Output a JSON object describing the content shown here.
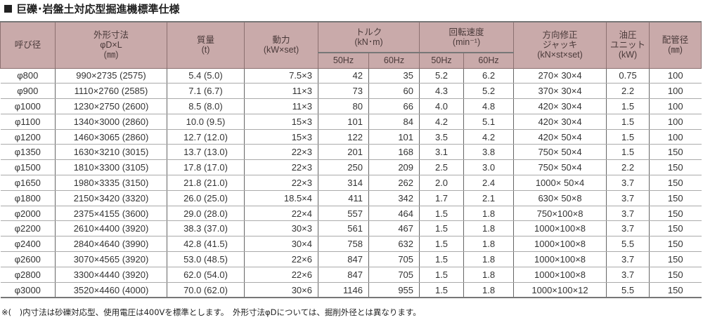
{
  "title": "巨礫･岩盤土対応型掘進機標準仕様",
  "headers": {
    "nominal": "呼び径",
    "outer_dim": [
      "外形寸法",
      "φD×L",
      "(㎜)"
    ],
    "mass": [
      "質量",
      "(t)"
    ],
    "power": [
      "動力",
      "(kW×set)"
    ],
    "torque": [
      "トルク",
      "(kN･m)"
    ],
    "speed": [
      "回転速度",
      "(min⁻¹)"
    ],
    "jack": [
      "方向修正",
      "ジャッキ",
      "(kN×st×set)"
    ],
    "hydraulic": [
      "油圧",
      "ユニット",
      "(kW)"
    ],
    "pipe": [
      "配管径",
      "(㎜)"
    ],
    "hz50": "50Hz",
    "hz60": "60Hz"
  },
  "rows": [
    [
      "φ800",
      "990×2735 (2575)",
      "5.4 (5.0)",
      "7.5×3",
      "42",
      "35",
      "5.2",
      "6.2",
      "270×  30×4",
      "0.75",
      "100"
    ],
    [
      "φ900",
      "1110×2760 (2585)",
      "7.1 (6.7)",
      "11×3",
      "73",
      "60",
      "4.3",
      "5.2",
      "370×  30×4",
      "2.2",
      "100"
    ],
    [
      "φ1000",
      "1230×2750 (2600)",
      "8.5 (8.0)",
      "11×3",
      "80",
      "66",
      "4.0",
      "4.8",
      "420×  30×4",
      "1.5",
      "100"
    ],
    [
      "φ1100",
      "1340×3000 (2860)",
      "10.0 (9.5)",
      "15×3",
      "101",
      "84",
      "4.2",
      "5.1",
      "420×  30×4",
      "1.5",
      "100"
    ],
    [
      "φ1200",
      "1460×3065 (2860)",
      "12.7 (12.0)",
      "15×3",
      "122",
      "101",
      "3.5",
      "4.2",
      "420×  50×4",
      "1.5",
      "100"
    ],
    [
      "φ1350",
      "1630×3210 (3015)",
      "13.7 (13.0)",
      "22×3",
      "201",
      "168",
      "3.1",
      "3.8",
      "750×  50×4",
      "1.5",
      "150"
    ],
    [
      "φ1500",
      "1810×3300 (3105)",
      "17.8 (17.0)",
      "22×3",
      "250",
      "209",
      "2.5",
      "3.0",
      "750×  50×4",
      "2.2",
      "150"
    ],
    [
      "φ1650",
      "1980×3335 (3150)",
      "21.8 (21.0)",
      "22×3",
      "314",
      "262",
      "2.0",
      "2.4",
      "1000×  50×4",
      "3.7",
      "150"
    ],
    [
      "φ1800",
      "2150×3420 (3320)",
      "26.0 (25.0)",
      "18.5×4",
      "411",
      "342",
      "1.7",
      "2.1",
      "630×  50×8",
      "3.7",
      "150"
    ],
    [
      "φ2000",
      "2375×4155 (3600)",
      "29.0 (28.0)",
      "22×4",
      "557",
      "464",
      "1.5",
      "1.8",
      "750×100×8",
      "3.7",
      "150"
    ],
    [
      "φ2200",
      "2610×4400 (3920)",
      "38.3 (37.0)",
      "30×3",
      "561",
      "467",
      "1.5",
      "1.8",
      "1000×100×8",
      "3.7",
      "150"
    ],
    [
      "φ2400",
      "2840×4640 (3990)",
      "42.8 (41.5)",
      "30×4",
      "758",
      "632",
      "1.5",
      "1.8",
      "1000×100×8",
      "5.5",
      "150"
    ],
    [
      "φ2600",
      "3070×4565 (3920)",
      "53.0 (48.5)",
      "22×6",
      "847",
      "705",
      "1.5",
      "1.8",
      "1000×100×8",
      "3.7",
      "150"
    ],
    [
      "φ2800",
      "3300×4440 (3920)",
      "62.0 (54.0)",
      "22×6",
      "847",
      "705",
      "1.5",
      "1.8",
      "1000×100×8",
      "3.7",
      "150"
    ],
    [
      "φ3000",
      "3520×4460 (4000)",
      "70.0 (62.0)",
      "30×6",
      "1146",
      "955",
      "1.5",
      "1.8",
      "1000×100×12",
      "5.5",
      "150"
    ]
  ],
  "note": "※(　)内寸法は砂礫対応型、使用電圧は400Vを標準とします。　外形寸法φDについては、掘削外径とは異なります。"
}
